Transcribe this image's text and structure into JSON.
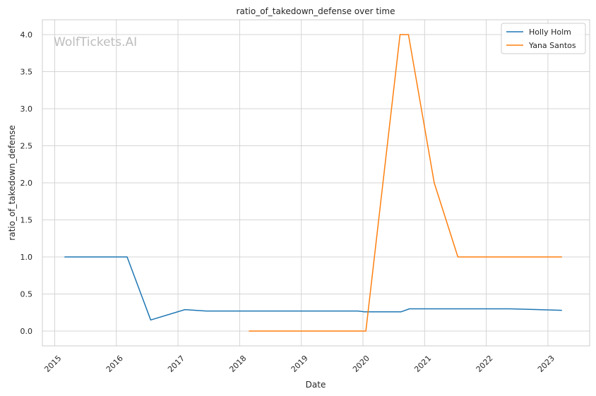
{
  "chart_data": {
    "type": "line",
    "title": "ratio_of_takedown_defense over time",
    "xlabel": "Date",
    "ylabel": "ratio_of_takedown_defense",
    "watermark": "WolfTickets.AI",
    "x_tick_labels": [
      "2015",
      "2016",
      "2017",
      "2018",
      "2019",
      "2020",
      "2021",
      "2022",
      "2023"
    ],
    "y_tick_labels": [
      "0.0",
      "0.5",
      "1.0",
      "1.5",
      "2.0",
      "2.5",
      "3.0",
      "3.5",
      "4.0"
    ],
    "xlim": [
      "2014-10-20",
      "2023-09-05"
    ],
    "ylim": [
      -0.2,
      4.2
    ],
    "grid": true,
    "legend_position": "top-right",
    "series": [
      {
        "name": "Holly Holm",
        "color": "#1f77b4",
        "points": [
          [
            "2015-02-28",
            1.0
          ],
          [
            "2016-03-05",
            1.0
          ],
          [
            "2016-07-23",
            0.15
          ],
          [
            "2017-02-11",
            0.29
          ],
          [
            "2017-06-17",
            0.27
          ],
          [
            "2019-12-01",
            0.27
          ],
          [
            "2020-01-10",
            0.26
          ],
          [
            "2020-08-15",
            0.26
          ],
          [
            "2020-10-03",
            0.3
          ],
          [
            "2022-05-21",
            0.3
          ],
          [
            "2023-03-25",
            0.28
          ]
        ]
      },
      {
        "name": "Yana Santos",
        "color": "#ff7f0e",
        "points": [
          [
            "2018-02-24",
            0.0
          ],
          [
            "2020-01-18",
            0.0
          ],
          [
            "2020-08-08",
            4.0
          ],
          [
            "2020-09-27",
            4.0
          ],
          [
            "2021-02-27",
            2.0
          ],
          [
            "2021-07-17",
            1.0
          ],
          [
            "2023-03-25",
            1.0
          ]
        ]
      }
    ]
  }
}
